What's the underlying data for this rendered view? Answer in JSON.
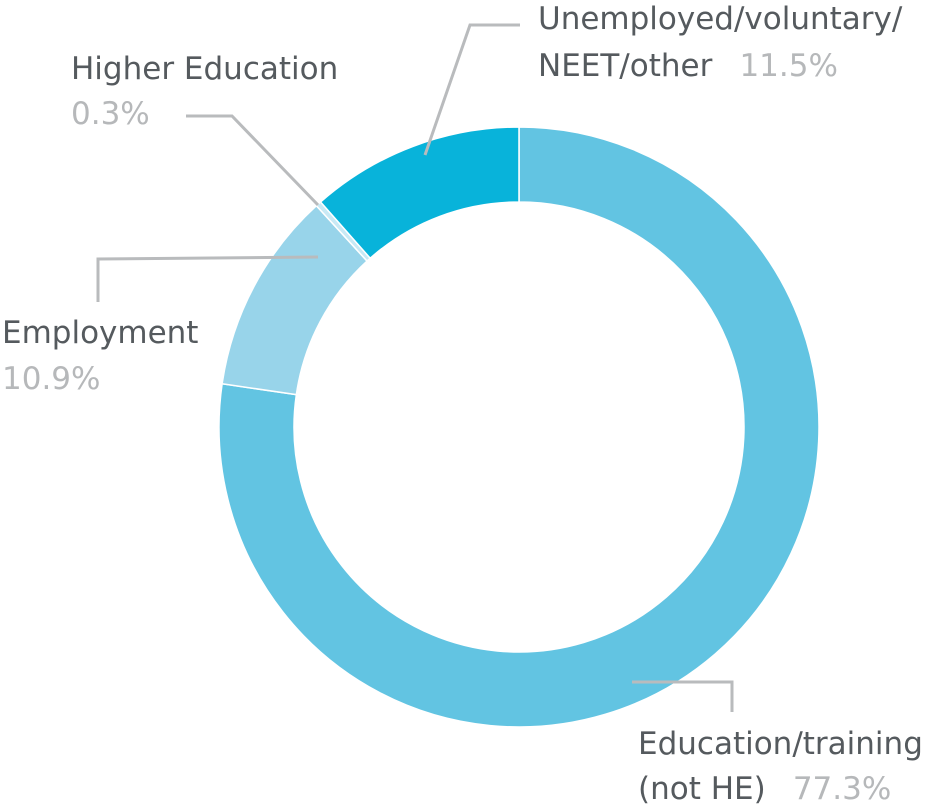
{
  "chart_data": {
    "type": "pie",
    "variant": "donut",
    "title": "",
    "legend": "none",
    "slices": [
      {
        "key": "education",
        "label_lines": [
          "Education/training",
          "(not HE)"
        ],
        "value": 77.3,
        "value_label": "77.3%",
        "color": "#62c4e2"
      },
      {
        "key": "employment",
        "label_lines": [
          "Employment"
        ],
        "value": 10.9,
        "value_label": "10.9%",
        "color": "#98d4ea"
      },
      {
        "key": "higher-education",
        "label_lines": [
          "Higher Education"
        ],
        "value": 0.3,
        "value_label": "0.3%",
        "color": "#c8e9f5"
      },
      {
        "key": "unemployed",
        "label_lines": [
          "Unemployed/voluntary/",
          "NEET/other"
        ],
        "value": 11.5,
        "value_label": "11.5%",
        "color": "#08b3da"
      }
    ]
  }
}
